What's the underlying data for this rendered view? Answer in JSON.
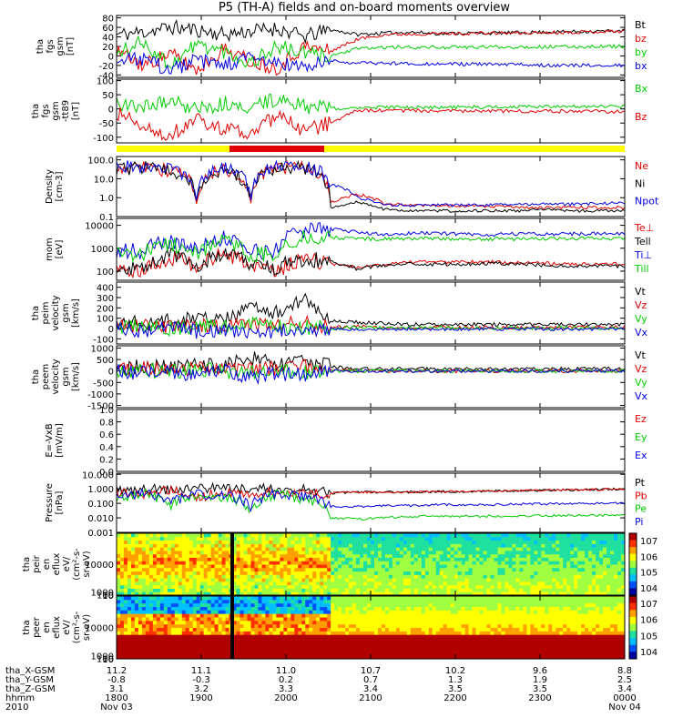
{
  "title": "P5 (TH-A) fields and on-board moments overview",
  "colors": {
    "black": "#000000",
    "red": "#e00000",
    "green": "#00cc00",
    "blue": "#0000e0",
    "yellow": "#ffff00",
    "bar_red": "#e00000"
  },
  "chart_data": [
    {
      "type": "line",
      "id": "fgs",
      "ylabel": [
        "tha",
        "fgs",
        "gsm",
        "[nT]"
      ],
      "yticks": [
        -40,
        -20,
        0,
        20,
        40,
        60,
        80
      ],
      "ylim": [
        -45,
        85
      ],
      "series": [
        {
          "name": "Bt",
          "color": "#000000",
          "values": [
            45,
            50,
            60,
            55,
            45,
            52,
            58,
            40,
            55,
            45,
            48,
            50,
            47,
            48,
            48,
            49,
            50,
            51,
            52,
            53
          ]
        },
        {
          "name": "bz",
          "color": "#e00000",
          "values": [
            10,
            -20,
            5,
            -30,
            15,
            -10,
            -25,
            20,
            10,
            35,
            45,
            46,
            47,
            47,
            48,
            48,
            49,
            50,
            51,
            52
          ]
        },
        {
          "name": "by",
          "color": "#00cc00",
          "values": [
            5,
            30,
            -20,
            25,
            10,
            -15,
            20,
            5,
            0,
            15,
            18,
            18,
            18,
            18,
            19,
            19,
            19,
            19,
            20,
            20
          ]
        },
        {
          "name": "bx",
          "color": "#0000e0",
          "values": [
            -15,
            -5,
            -30,
            -10,
            -20,
            -5,
            -15,
            -25,
            -10,
            -15,
            -15,
            -16,
            -17,
            -17,
            -18,
            -18,
            -19,
            -20,
            -20,
            -20
          ]
        }
      ]
    },
    {
      "type": "line",
      "id": "fgs_sm",
      "ylabel": [
        "tha",
        "fgs",
        "gsm",
        "-tt89",
        "[nT]"
      ],
      "yticks": [
        -100,
        -50,
        0,
        50,
        100
      ],
      "ylim": [
        -120,
        105
      ],
      "series": [
        {
          "name": "Bx",
          "color": "#00cc00",
          "values": [
            20,
            10,
            30,
            0,
            20,
            5,
            35,
            10,
            0,
            5,
            5,
            5,
            6,
            6,
            7,
            7,
            8,
            8,
            9,
            10
          ]
        },
        {
          "name": "Bz",
          "color": "#e00000",
          "values": [
            -10,
            -60,
            -90,
            -40,
            -70,
            -90,
            -20,
            -80,
            -50,
            -5,
            -5,
            -6,
            -6,
            -7,
            -7,
            -8,
            -8,
            -9,
            -9,
            -10
          ]
        }
      ]
    },
    {
      "type": "line",
      "id": "density",
      "log": true,
      "ylabel": [
        "Density",
        "[cm-3]"
      ],
      "yticks": [
        0.1,
        1.0,
        10.0,
        100.0
      ],
      "yticklabels": [
        "0.1",
        "1.0",
        "10.0",
        "100.0"
      ],
      "ylim": [
        0.1,
        150
      ],
      "series": [
        {
          "name": "Ne",
          "color": "#e00000",
          "values": [
            30,
            40,
            25,
            0.5,
            30,
            0.3,
            35,
            40,
            0.5,
            1.5,
            0.5,
            0.4,
            0.4,
            0.35,
            0.35,
            0.3,
            0.3,
            0.3,
            0.3,
            0.3
          ]
        },
        {
          "name": "Ni",
          "color": "#000000",
          "values": [
            30,
            40,
            25,
            0.4,
            30,
            0.2,
            35,
            40,
            0.3,
            0.6,
            0.25,
            0.2,
            0.2,
            0.2,
            0.2,
            0.2,
            0.25,
            0.2,
            0.2,
            0.2
          ]
        },
        {
          "name": "Npot",
          "color": "#0000e0",
          "values": [
            40,
            45,
            35,
            1,
            40,
            0.5,
            45,
            50,
            5,
            1,
            0.4,
            0.4,
            0.4,
            0.4,
            0.4,
            0.45,
            0.45,
            0.45,
            0.5,
            0.5
          ]
        }
      ]
    },
    {
      "type": "line",
      "id": "mom",
      "log": true,
      "ylabel": [
        "mom",
        "[eV]"
      ],
      "yticks": [
        100,
        1000,
        10000
      ],
      "yticklabels": [
        "100",
        "1000",
        "10000"
      ],
      "ylim": [
        40,
        20000
      ],
      "series": [
        {
          "name": "Te⊥",
          "color": "#e00000",
          "values": [
            120,
            110,
            400,
            130,
            500,
            150,
            100,
            300,
            200,
            150,
            200,
            250,
            250,
            250,
            250,
            220,
            220,
            200,
            200,
            200
          ]
        },
        {
          "name": "Tell",
          "color": "#000000",
          "values": [
            150,
            130,
            500,
            150,
            600,
            170,
            120,
            350,
            250,
            120,
            180,
            200,
            200,
            200,
            220,
            200,
            180,
            170,
            170,
            160
          ]
        },
        {
          "name": "Ti⊥",
          "color": "#0000e0",
          "values": [
            700,
            800,
            2000,
            700,
            3000,
            700,
            800,
            6000,
            7000,
            5000,
            4000,
            4500,
            4500,
            4000,
            4000,
            4200,
            4000,
            4200,
            4500,
            4500
          ]
        },
        {
          "name": "Till",
          "color": "#00cc00",
          "values": [
            500,
            600,
            1500,
            500,
            2000,
            500,
            600,
            3000,
            3000,
            2500,
            2500,
            2600,
            2600,
            2500,
            2500,
            2500,
            2500,
            2600,
            2600,
            2600
          ]
        }
      ]
    },
    {
      "type": "line",
      "id": "peim",
      "ylabel": [
        "tha",
        "peim",
        "velocity",
        "gsm",
        "[km/s]"
      ],
      "yticks": [
        -100,
        0,
        100,
        200,
        300,
        400
      ],
      "ylim": [
        -150,
        450
      ],
      "series": [
        {
          "name": "Vt",
          "color": "#000000",
          "values": [
            50,
            60,
            80,
            100,
            70,
            200,
            150,
            300,
            80,
            60,
            50,
            40,
            40,
            40,
            40,
            40,
            40,
            40,
            40,
            40
          ]
        },
        {
          "name": "Vz",
          "color": "#e00000",
          "values": [
            20,
            30,
            10,
            40,
            20,
            50,
            30,
            60,
            10,
            20,
            10,
            10,
            10,
            10,
            10,
            10,
            10,
            10,
            10,
            10
          ]
        },
        {
          "name": "Vy",
          "color": "#00cc00",
          "values": [
            10,
            20,
            0,
            30,
            10,
            40,
            20,
            10,
            0,
            10,
            5,
            5,
            5,
            5,
            5,
            5,
            5,
            5,
            5,
            5
          ]
        },
        {
          "name": "Vx",
          "color": "#0000e0",
          "values": [
            0,
            -20,
            10,
            -30,
            0,
            -50,
            -20,
            -40,
            0,
            -10,
            -5,
            -5,
            -5,
            -5,
            -5,
            -5,
            -5,
            -5,
            -5,
            -5
          ]
        }
      ]
    },
    {
      "type": "line",
      "id": "peem",
      "ylabel": [
        "tha",
        "peem",
        "velocity",
        "gsm",
        "[km/s]"
      ],
      "yticks": [
        -1500,
        -1000,
        -500,
        0,
        500,
        1000
      ],
      "ylim": [
        -1600,
        1100
      ],
      "series": [
        {
          "name": "Vt",
          "color": "#000000",
          "values": [
            100,
            200,
            150,
            300,
            200,
            600,
            300,
            400,
            200,
            100,
            100,
            100,
            100,
            100,
            100,
            100,
            100,
            100,
            100,
            100
          ]
        },
        {
          "name": "Vz",
          "color": "#e00000",
          "values": [
            0,
            100,
            50,
            150,
            50,
            200,
            100,
            300,
            50,
            0,
            0,
            0,
            0,
            0,
            0,
            0,
            0,
            0,
            0,
            0
          ]
        },
        {
          "name": "Vy",
          "color": "#00cc00",
          "values": [
            0,
            50,
            -50,
            100,
            0,
            -100,
            50,
            -50,
            0,
            0,
            0,
            0,
            0,
            0,
            0,
            0,
            0,
            0,
            0,
            0
          ]
        },
        {
          "name": "Vx",
          "color": "#0000e0",
          "values": [
            0,
            -100,
            -50,
            -200,
            0,
            -300,
            -100,
            -200,
            0,
            0,
            0,
            0,
            0,
            0,
            0,
            0,
            0,
            0,
            0,
            0
          ]
        }
      ]
    },
    {
      "type": "line",
      "id": "exb",
      "ylabel": [
        "E=-VxB",
        "[mV/m]"
      ],
      "yticks": [
        0.0,
        0.2,
        0.4,
        0.6,
        0.8,
        1.0
      ],
      "yticklabels": [
        "0.0",
        "0.2",
        "0.4",
        "0.6",
        "0.8",
        "1.0"
      ],
      "ylim": [
        0,
        1
      ],
      "series": [
        {
          "name": "Ez",
          "color": "#e00000",
          "values": []
        },
        {
          "name": "Ey",
          "color": "#00cc00",
          "values": []
        },
        {
          "name": "Ex",
          "color": "#0000e0",
          "values": []
        }
      ]
    },
    {
      "type": "line",
      "id": "pressure",
      "log": true,
      "ylabel": [
        "Pressure",
        "[nPa]"
      ],
      "yticks": [
        0.001,
        0.01,
        0.1,
        1.0,
        10.0
      ],
      "yticklabels": [
        "0.001",
        "0.010",
        "0.100",
        "1.000",
        "10.000"
      ],
      "ylim": [
        0.001,
        12
      ],
      "series": [
        {
          "name": "Pt",
          "color": "#000000",
          "values": [
            0.8,
            1,
            0.9,
            1.2,
            1,
            1.1,
            0.9,
            1,
            0.5,
            0.6,
            0.6,
            0.6,
            0.65,
            0.65,
            0.7,
            0.75,
            0.8,
            0.85,
            0.9,
            1
          ]
        },
        {
          "name": "Pb",
          "color": "#e00000",
          "values": [
            0.5,
            0.3,
            0.8,
            0.2,
            0.6,
            0.3,
            0.7,
            0.4,
            0.5,
            0.6,
            0.6,
            0.6,
            0.65,
            0.65,
            0.7,
            0.75,
            0.8,
            0.85,
            0.9,
            1
          ]
        },
        {
          "name": "Pe",
          "color": "#00cc00",
          "values": [
            0.2,
            0.5,
            0.05,
            0.4,
            0.3,
            0.02,
            0.4,
            0.2,
            0.01,
            0.008,
            0.01,
            0.012,
            0.013,
            0.013,
            0.013,
            0.014,
            0.014,
            0.015,
            0.015,
            0.015
          ]
        },
        {
          "name": "Pi",
          "color": "#0000e0",
          "values": [
            0.3,
            0.5,
            0.1,
            0.4,
            0.4,
            0.05,
            0.5,
            0.3,
            0.06,
            0.06,
            0.07,
            0.07,
            0.08,
            0.08,
            0.08,
            0.09,
            0.09,
            0.1,
            0.1,
            0.1
          ]
        }
      ]
    },
    {
      "type": "heatmap",
      "id": "peir",
      "ylabel": [
        "tha",
        "peir",
        "en",
        "eflux",
        "eV/",
        "(cm^2-s-",
        "sr-eV)"
      ],
      "yticks": [
        10,
        100,
        1000,
        10000
      ],
      "yticklabels": [
        "10",
        "100",
        "1000",
        "10000"
      ],
      "ylim": [
        7,
        20000
      ],
      "colorbar": [
        "10^4",
        "10^5",
        "10^6",
        "10^7"
      ]
    },
    {
      "type": "heatmap",
      "id": "peer",
      "ylabel": [
        "tha",
        "peer",
        "en",
        "eflux",
        "eV/",
        "(cm^2-s-",
        "sr-eV)"
      ],
      "yticks": [
        10,
        100,
        1000,
        10000
      ],
      "yticklabels": [
        "10",
        "100",
        "1000",
        "10000"
      ],
      "ylim": [
        7,
        20000
      ],
      "colorbar": [
        "10^4",
        "10^5",
        "10^6",
        "10^7"
      ]
    }
  ],
  "xaxis": {
    "rows": [
      {
        "label": "tha_X-GSM",
        "values": [
          "11.2",
          "11.1",
          "11.0",
          "10.7",
          "10.2",
          "9.6",
          "8.8"
        ]
      },
      {
        "label": "tha_Y-GSM",
        "values": [
          "-0.8",
          "-0.3",
          "0.2",
          "0.7",
          "1.3",
          "1.9",
          "2.5"
        ]
      },
      {
        "label": "tha_Z-GSM",
        "values": [
          "3.1",
          "3.2",
          "3.3",
          "3.4",
          "3.5",
          "3.5",
          "3.4"
        ]
      },
      {
        "label": "hhmm",
        "values": [
          "1800",
          "1900",
          "2000",
          "2100",
          "2200",
          "2300",
          "0000"
        ]
      },
      {
        "label": "2010",
        "values": [
          "Nov 03",
          "",
          "",
          "",
          "",
          "",
          "Nov 04"
        ]
      }
    ]
  }
}
